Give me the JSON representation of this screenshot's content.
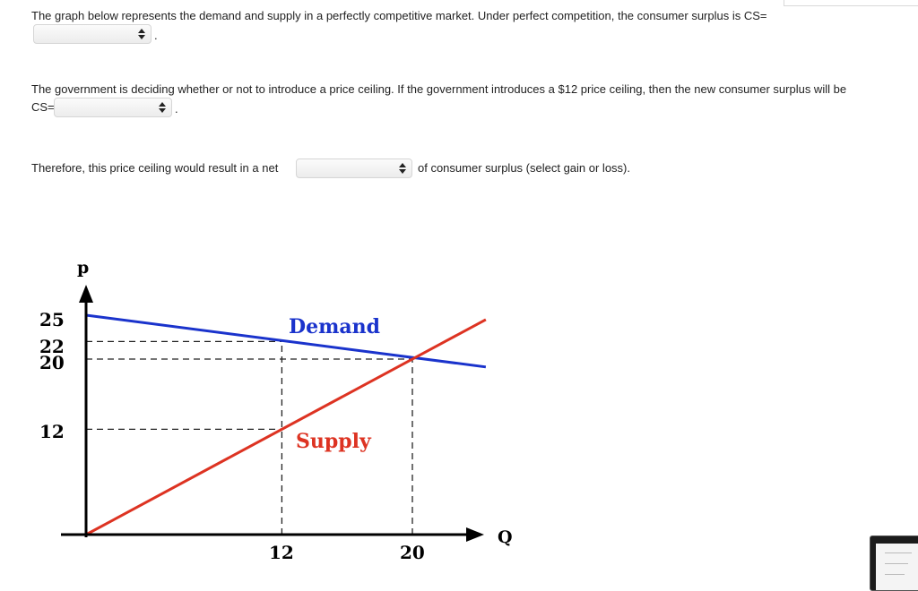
{
  "question1": {
    "text": "The graph below represents the demand and supply in a perfectly competitive market. Under perfect competition, the consumer surplus is CS=",
    "select_value": "",
    "suffix": "."
  },
  "question2": {
    "text_line1": "The government is deciding whether or not to introduce a price ceiling. If the government introduces a $12 price ceiling, then the new consumer surplus will be",
    "text_line2": "CS=",
    "select_value": "",
    "suffix": "."
  },
  "question3": {
    "prefix": "Therefore, this price ceiling would result in a net",
    "select_value": "",
    "suffix": "of consumer surplus (select gain or loss)."
  },
  "chart_data": {
    "type": "line",
    "xlabel": "Q",
    "ylabel": "p",
    "y_ticks": [
      "25",
      "22",
      "20",
      "12"
    ],
    "x_ticks": [
      "12",
      "20"
    ],
    "series": [
      {
        "name": "Demand",
        "color": "#1a33cc",
        "points": [
          [
            0,
            25
          ],
          [
            24.5,
            19.1
          ]
        ]
      },
      {
        "name": "Supply",
        "color": "#dd3322",
        "points": [
          [
            0,
            0
          ],
          [
            24.5,
            24.5
          ]
        ]
      }
    ],
    "guides": [
      {
        "from": [
          0,
          22
        ],
        "to": [
          12,
          22
        ]
      },
      {
        "from": [
          0,
          20
        ],
        "to": [
          20,
          20
        ]
      },
      {
        "from": [
          0,
          12
        ],
        "to": [
          12,
          12
        ]
      },
      {
        "from": [
          12,
          0
        ],
        "to": [
          12,
          22
        ]
      },
      {
        "from": [
          20,
          0
        ],
        "to": [
          20,
          20
        ]
      }
    ],
    "xlim": [
      0,
      26
    ],
    "ylim": [
      0,
      29
    ]
  }
}
